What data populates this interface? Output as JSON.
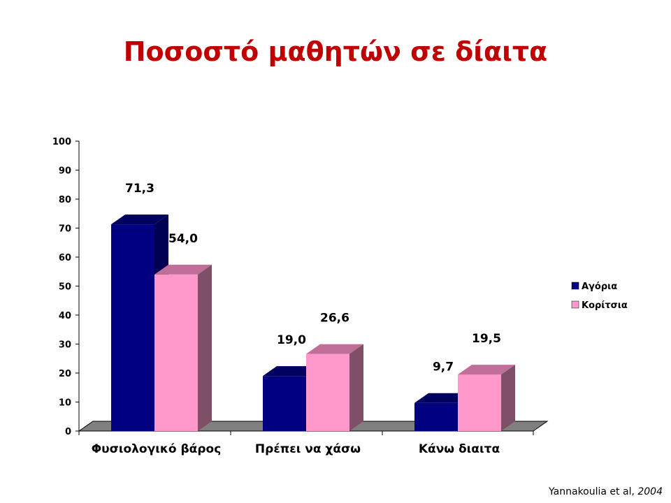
{
  "title": "Ποσοστό μαθητών σε δίαιτα",
  "citation": {
    "authors": "Yannakoulia et al,",
    "year": "2004"
  },
  "colors": {
    "series_0": "#000080",
    "series_0_side": "#000050",
    "series_0_top": "#00005e",
    "series_1": "#ff99cc",
    "series_1_side": "#7f4f68",
    "series_1_top": "#c07098",
    "floor": "#808080",
    "title": "#c00000"
  },
  "chart_data": {
    "type": "bar",
    "categories": [
      "Φυσιολογικό βάρος",
      "Πρέπει να χάσω",
      "Κάνω διαιτα"
    ],
    "series": [
      {
        "name": "Αγόρια",
        "values": [
          71.3,
          19.0,
          9.7
        ],
        "labels": [
          "71,3",
          "19,0",
          "9,7"
        ]
      },
      {
        "name": "Κορίτσια",
        "values": [
          54.0,
          26.6,
          19.5
        ],
        "labels": [
          "54,0",
          "26,6",
          "19,5"
        ]
      }
    ],
    "ylim": [
      0,
      100
    ],
    "yticks": [
      "0",
      "10",
      "20",
      "30",
      "40",
      "50",
      "60",
      "70",
      "80",
      "90",
      "100"
    ],
    "legend_position": "right",
    "three_d": true
  }
}
